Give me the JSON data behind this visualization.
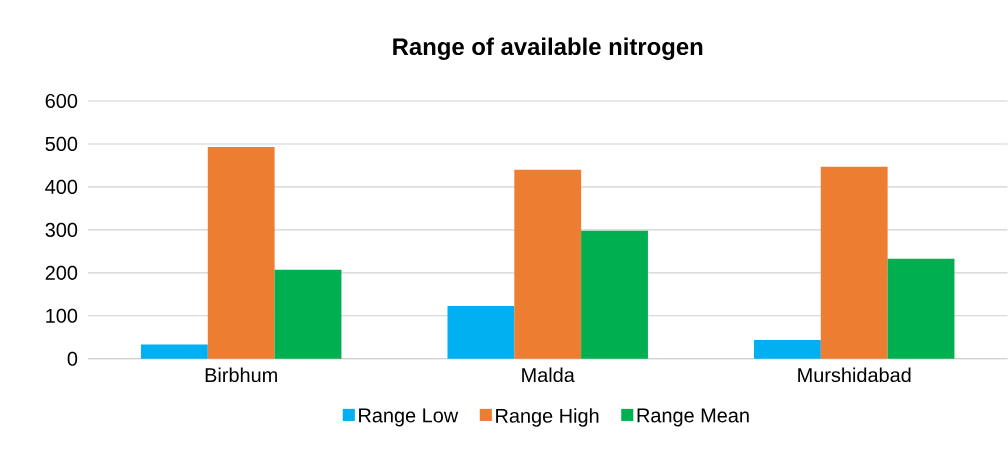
{
  "chart_data": {
    "type": "bar",
    "title": "Range of available nitrogen",
    "categories": [
      "Birbhum",
      "Malda",
      "Murshidabad"
    ],
    "series": [
      {
        "name": "Range Low",
        "color": "#00b0f0",
        "values": [
          33,
          123,
          44
        ]
      },
      {
        "name": "Range High",
        "color": "#ed7d31",
        "values": [
          493,
          440,
          447
        ]
      },
      {
        "name": "Range Mean",
        "color": "#00b050",
        "values": [
          207,
          298,
          233
        ]
      }
    ],
    "ylim": [
      0,
      600
    ],
    "yticks": [
      0,
      100,
      200,
      300,
      400,
      500,
      600
    ],
    "grid": "y",
    "legend": "bottom"
  }
}
